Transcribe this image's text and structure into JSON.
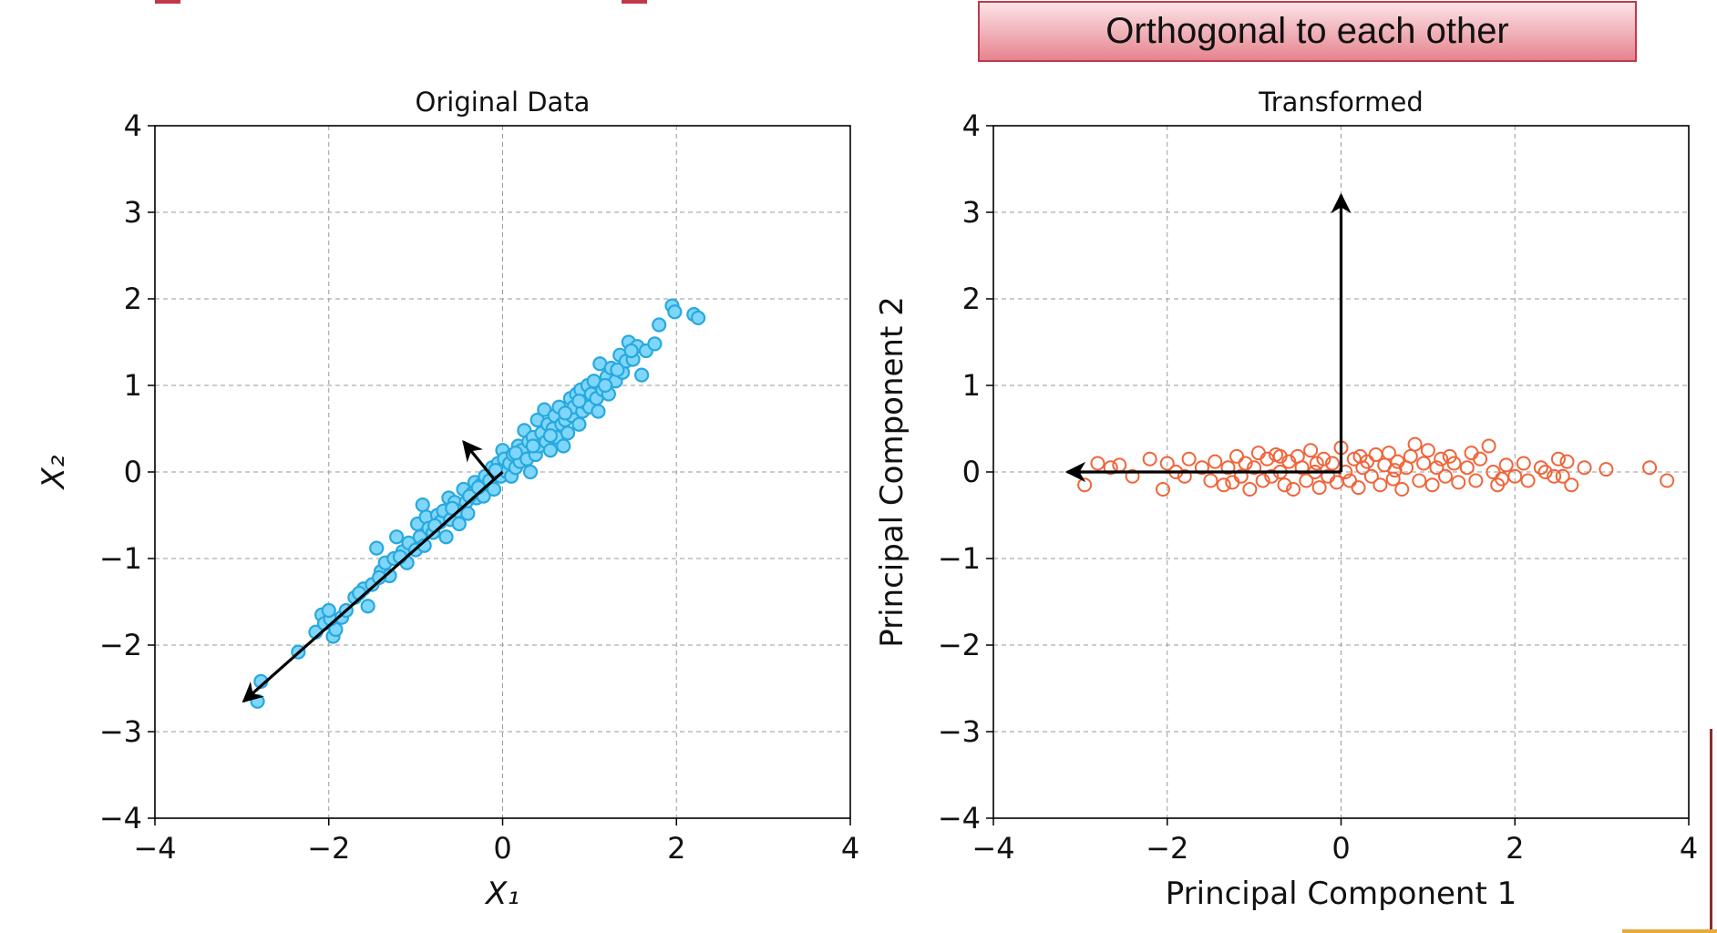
{
  "banner": {
    "text": "Orthogonal to each other"
  },
  "colors": {
    "left_point_fill": "#7fd6fb",
    "left_point_stroke": "#27a9de",
    "right_point_stroke": "#f0643a",
    "arrow": "#000000",
    "grid": "#9a9a9a",
    "banner_border": "#c0394b",
    "edge_accent": "#c0394b"
  },
  "chart_data": [
    {
      "type": "scatter",
      "title": "Original Data",
      "xlabel": "X₁",
      "ylabel": "X₂",
      "xlim": [
        -4,
        4
      ],
      "ylim": [
        -4,
        4
      ],
      "xticks": [
        -4,
        -2,
        0,
        2,
        4
      ],
      "yticks": [
        -4,
        -3,
        -2,
        -1,
        0,
        1,
        2,
        3,
        4
      ],
      "xtick_labels": [
        "−4",
        "−2",
        "0",
        "2",
        "4"
      ],
      "ytick_labels": [
        "−4",
        "−3",
        "−2",
        "−1",
        "0",
        "1",
        "2",
        "3",
        "4"
      ],
      "grid": true,
      "marker": "filled-circle",
      "points": [
        [
          -2.82,
          -2.65
        ],
        [
          -2.78,
          -2.42
        ],
        [
          -2.35,
          -2.08
        ],
        [
          -2.15,
          -1.85
        ],
        [
          -2.08,
          -1.65
        ],
        [
          -2.05,
          -1.75
        ],
        [
          -1.95,
          -1.9
        ],
        [
          -1.92,
          -1.82
        ],
        [
          -1.98,
          -1.7
        ],
        [
          -1.85,
          -1.68
        ],
        [
          -1.7,
          -1.45
        ],
        [
          -1.6,
          -1.35
        ],
        [
          -1.55,
          -1.55
        ],
        [
          -1.5,
          -1.3
        ],
        [
          -1.45,
          -0.88
        ],
        [
          -1.4,
          -1.15
        ],
        [
          -1.35,
          -1.05
        ],
        [
          -1.3,
          -1.2
        ],
        [
          -1.25,
          -1.0
        ],
        [
          -1.22,
          -0.75
        ],
        [
          -1.15,
          -0.92
        ],
        [
          -1.1,
          -1.05
        ],
        [
          -1.08,
          -0.82
        ],
        [
          -1.0,
          -0.9
        ],
        [
          -0.98,
          -0.6
        ],
        [
          -0.95,
          -0.75
        ],
        [
          -0.9,
          -0.85
        ],
        [
          -0.92,
          -0.38
        ],
        [
          -0.88,
          -0.52
        ],
        [
          -0.85,
          -0.65
        ],
        [
          -0.8,
          -0.7
        ],
        [
          -0.75,
          -0.5
        ],
        [
          -0.72,
          -0.58
        ],
        [
          -0.68,
          -0.45
        ],
        [
          -0.65,
          -0.75
        ],
        [
          -0.62,
          -0.3
        ],
        [
          -0.6,
          -0.55
        ],
        [
          -0.55,
          -0.35
        ],
        [
          -0.52,
          -0.45
        ],
        [
          -0.5,
          -0.6
        ],
        [
          -0.45,
          -0.2
        ],
        [
          -0.42,
          -0.35
        ],
        [
          -0.4,
          -0.48
        ],
        [
          -0.35,
          -0.25
        ],
        [
          -0.32,
          -0.12
        ],
        [
          -0.3,
          -0.3
        ],
        [
          -0.25,
          -0.15
        ],
        [
          -0.22,
          -0.28
        ],
        [
          -0.2,
          -0.05
        ],
        [
          -0.15,
          -0.1
        ],
        [
          -0.12,
          0.05
        ],
        [
          -0.1,
          -0.2
        ],
        [
          -0.05,
          0.1
        ],
        [
          -0.02,
          -0.05
        ],
        [
          0.0,
          0.25
        ],
        [
          0.02,
          0.15
        ],
        [
          0.05,
          0.0
        ],
        [
          0.08,
          0.1
        ],
        [
          0.1,
          -0.05
        ],
        [
          0.12,
          0.2
        ],
        [
          0.15,
          0.05
        ],
        [
          0.18,
          0.3
        ],
        [
          0.2,
          0.12
        ],
        [
          0.22,
          0.25
        ],
        [
          0.25,
          0.48
        ],
        [
          0.28,
          0.15
        ],
        [
          0.3,
          0.35
        ],
        [
          0.32,
          0.0
        ],
        [
          0.35,
          0.4
        ],
        [
          0.38,
          0.2
        ],
        [
          0.4,
          0.6
        ],
        [
          0.42,
          0.3
        ],
        [
          0.45,
          0.45
        ],
        [
          0.48,
          0.72
        ],
        [
          0.5,
          0.35
        ],
        [
          0.52,
          0.55
        ],
        [
          0.55,
          0.25
        ],
        [
          0.58,
          0.5
        ],
        [
          0.6,
          0.65
        ],
        [
          0.62,
          0.4
        ],
        [
          0.65,
          0.75
        ],
        [
          0.68,
          0.55
        ],
        [
          0.7,
          0.3
        ],
        [
          0.72,
          0.6
        ],
        [
          0.75,
          0.45
        ],
        [
          0.78,
          0.85
        ],
        [
          0.8,
          0.65
        ],
        [
          0.82,
          0.75
        ],
        [
          0.85,
          0.9
        ],
        [
          0.88,
          0.55
        ],
        [
          0.9,
          0.95
        ],
        [
          0.92,
          0.7
        ],
        [
          0.95,
          0.8
        ],
        [
          0.98,
          1.0
        ],
        [
          1.0,
          0.75
        ],
        [
          1.02,
          0.9
        ],
        [
          1.05,
          1.05
        ],
        [
          1.08,
          0.85
        ],
        [
          1.1,
          0.7
        ],
        [
          1.12,
          1.25
        ],
        [
          1.15,
          0.95
        ],
        [
          1.2,
          1.1
        ],
        [
          1.22,
          0.9
        ],
        [
          1.25,
          1.2
        ],
        [
          1.3,
          1.05
        ],
        [
          1.35,
          1.35
        ],
        [
          1.38,
          1.15
        ],
        [
          1.42,
          1.28
        ],
        [
          1.45,
          1.5
        ],
        [
          1.5,
          1.3
        ],
        [
          1.55,
          1.45
        ],
        [
          1.6,
          1.12
        ],
        [
          1.65,
          1.4
        ],
        [
          1.75,
          1.48
        ],
        [
          1.8,
          1.7
        ],
        [
          1.95,
          1.92
        ],
        [
          1.98,
          1.85
        ],
        [
          2.2,
          1.82
        ],
        [
          2.25,
          1.78
        ],
        [
          -2.0,
          -1.6
        ],
        [
          -1.8,
          -1.6
        ],
        [
          -1.65,
          -1.4
        ],
        [
          -1.42,
          -1.22
        ],
        [
          -1.18,
          -0.98
        ],
        [
          -0.78,
          -0.62
        ],
        [
          -0.58,
          -0.42
        ],
        [
          -0.38,
          -0.28
        ],
        [
          -0.28,
          -0.18
        ],
        [
          -0.08,
          0.02
        ],
        [
          0.15,
          0.22
        ],
        [
          0.35,
          0.3
        ],
        [
          0.55,
          0.42
        ],
        [
          0.72,
          0.68
        ],
        [
          0.88,
          0.82
        ],
        [
          1.18,
          1.0
        ],
        [
          1.32,
          1.18
        ],
        [
          1.48,
          1.4
        ]
      ],
      "arrows": [
        {
          "from": [
            0,
            0
          ],
          "to": [
            -2.98,
            -2.65
          ]
        },
        {
          "from": [
            -0.1,
            -0.08
          ],
          "to": [
            -0.45,
            0.35
          ]
        }
      ]
    },
    {
      "type": "scatter",
      "title": "Transformed",
      "xlabel": "Principal Component 1",
      "ylabel": "Principal Component 2",
      "xlim": [
        -4,
        4
      ],
      "ylim": [
        -4,
        4
      ],
      "xticks": [
        -4,
        -2,
        0,
        2,
        4
      ],
      "yticks": [
        -4,
        -3,
        -2,
        -1,
        0,
        1,
        2,
        3,
        4
      ],
      "xtick_labels": [
        "−4",
        "−2",
        "0",
        "2",
        "4"
      ],
      "ytick_labels": [
        "−4",
        "−3",
        "−2",
        "−1",
        "0",
        "1",
        "2",
        "3",
        "4"
      ],
      "grid": true,
      "marker": "hollow-circle",
      "points": [
        [
          -2.95,
          -0.15
        ],
        [
          -2.8,
          0.1
        ],
        [
          -2.65,
          0.05
        ],
        [
          -2.4,
          -0.05
        ],
        [
          -2.2,
          0.15
        ],
        [
          -2.05,
          -0.2
        ],
        [
          -2.0,
          0.1
        ],
        [
          -1.9,
          0.0
        ],
        [
          -1.8,
          -0.05
        ],
        [
          -1.75,
          0.15
        ],
        [
          -1.6,
          0.05
        ],
        [
          -1.5,
          -0.1
        ],
        [
          -1.45,
          0.12
        ],
        [
          -1.35,
          -0.15
        ],
        [
          -1.3,
          0.05
        ],
        [
          -1.2,
          0.18
        ],
        [
          -1.15,
          -0.05
        ],
        [
          -1.1,
          0.1
        ],
        [
          -1.05,
          -0.2
        ],
        [
          -1.0,
          0.05
        ],
        [
          -0.95,
          0.22
        ],
        [
          -0.9,
          -0.1
        ],
        [
          -0.85,
          0.15
        ],
        [
          -0.8,
          -0.05
        ],
        [
          -0.75,
          0.2
        ],
        [
          -0.7,
          0.0
        ],
        [
          -0.65,
          -0.15
        ],
        [
          -0.6,
          0.12
        ],
        [
          -0.55,
          -0.2
        ],
        [
          -0.5,
          0.18
        ],
        [
          -0.45,
          0.05
        ],
        [
          -0.4,
          -0.1
        ],
        [
          -0.35,
          0.25
        ],
        [
          -0.3,
          0.0
        ],
        [
          -0.25,
          -0.18
        ],
        [
          -0.2,
          0.15
        ],
        [
          -0.15,
          -0.05
        ],
        [
          -0.1,
          0.1
        ],
        [
          -0.05,
          -0.12
        ],
        [
          0.0,
          0.28
        ],
        [
          0.05,
          0.0
        ],
        [
          0.1,
          -0.1
        ],
        [
          0.15,
          0.15
        ],
        [
          0.2,
          -0.18
        ],
        [
          0.25,
          0.05
        ],
        [
          0.3,
          0.12
        ],
        [
          0.35,
          -0.05
        ],
        [
          0.4,
          0.2
        ],
        [
          0.45,
          -0.15
        ],
        [
          0.5,
          0.08
        ],
        [
          0.55,
          0.22
        ],
        [
          0.6,
          -0.08
        ],
        [
          0.65,
          0.12
        ],
        [
          0.7,
          -0.2
        ],
        [
          0.75,
          0.05
        ],
        [
          0.8,
          0.18
        ],
        [
          0.85,
          0.32
        ],
        [
          0.9,
          -0.1
        ],
        [
          0.95,
          0.1
        ],
        [
          1.0,
          0.25
        ],
        [
          1.05,
          -0.15
        ],
        [
          1.1,
          0.05
        ],
        [
          1.15,
          0.15
        ],
        [
          1.2,
          -0.05
        ],
        [
          1.3,
          0.1
        ],
        [
          1.35,
          -0.12
        ],
        [
          1.45,
          0.05
        ],
        [
          1.5,
          0.22
        ],
        [
          1.55,
          -0.1
        ],
        [
          1.6,
          0.15
        ],
        [
          1.7,
          0.3
        ],
        [
          1.75,
          0.0
        ],
        [
          1.8,
          -0.15
        ],
        [
          1.9,
          0.08
        ],
        [
          2.0,
          -0.05
        ],
        [
          2.1,
          0.1
        ],
        [
          2.15,
          -0.1
        ],
        [
          2.3,
          0.05
        ],
        [
          2.35,
          0.0
        ],
        [
          2.5,
          0.15
        ],
        [
          2.55,
          -0.05
        ],
        [
          2.6,
          0.12
        ],
        [
          2.65,
          -0.15
        ],
        [
          2.8,
          0.05
        ],
        [
          3.05,
          0.03
        ],
        [
          3.55,
          0.05
        ],
        [
          3.75,
          -0.1
        ],
        [
          -2.55,
          0.08
        ],
        [
          -1.25,
          -0.12
        ],
        [
          -0.7,
          0.18
        ],
        [
          -0.28,
          0.1
        ],
        [
          0.22,
          0.18
        ],
        [
          0.62,
          0.02
        ],
        [
          1.25,
          0.18
        ],
        [
          1.85,
          -0.08
        ],
        [
          2.45,
          -0.05
        ]
      ],
      "arrows": [
        {
          "from": [
            0,
            0
          ],
          "to": [
            -3.15,
            0.0
          ]
        },
        {
          "from": [
            0,
            0
          ],
          "to": [
            0.0,
            3.2
          ]
        }
      ]
    }
  ]
}
